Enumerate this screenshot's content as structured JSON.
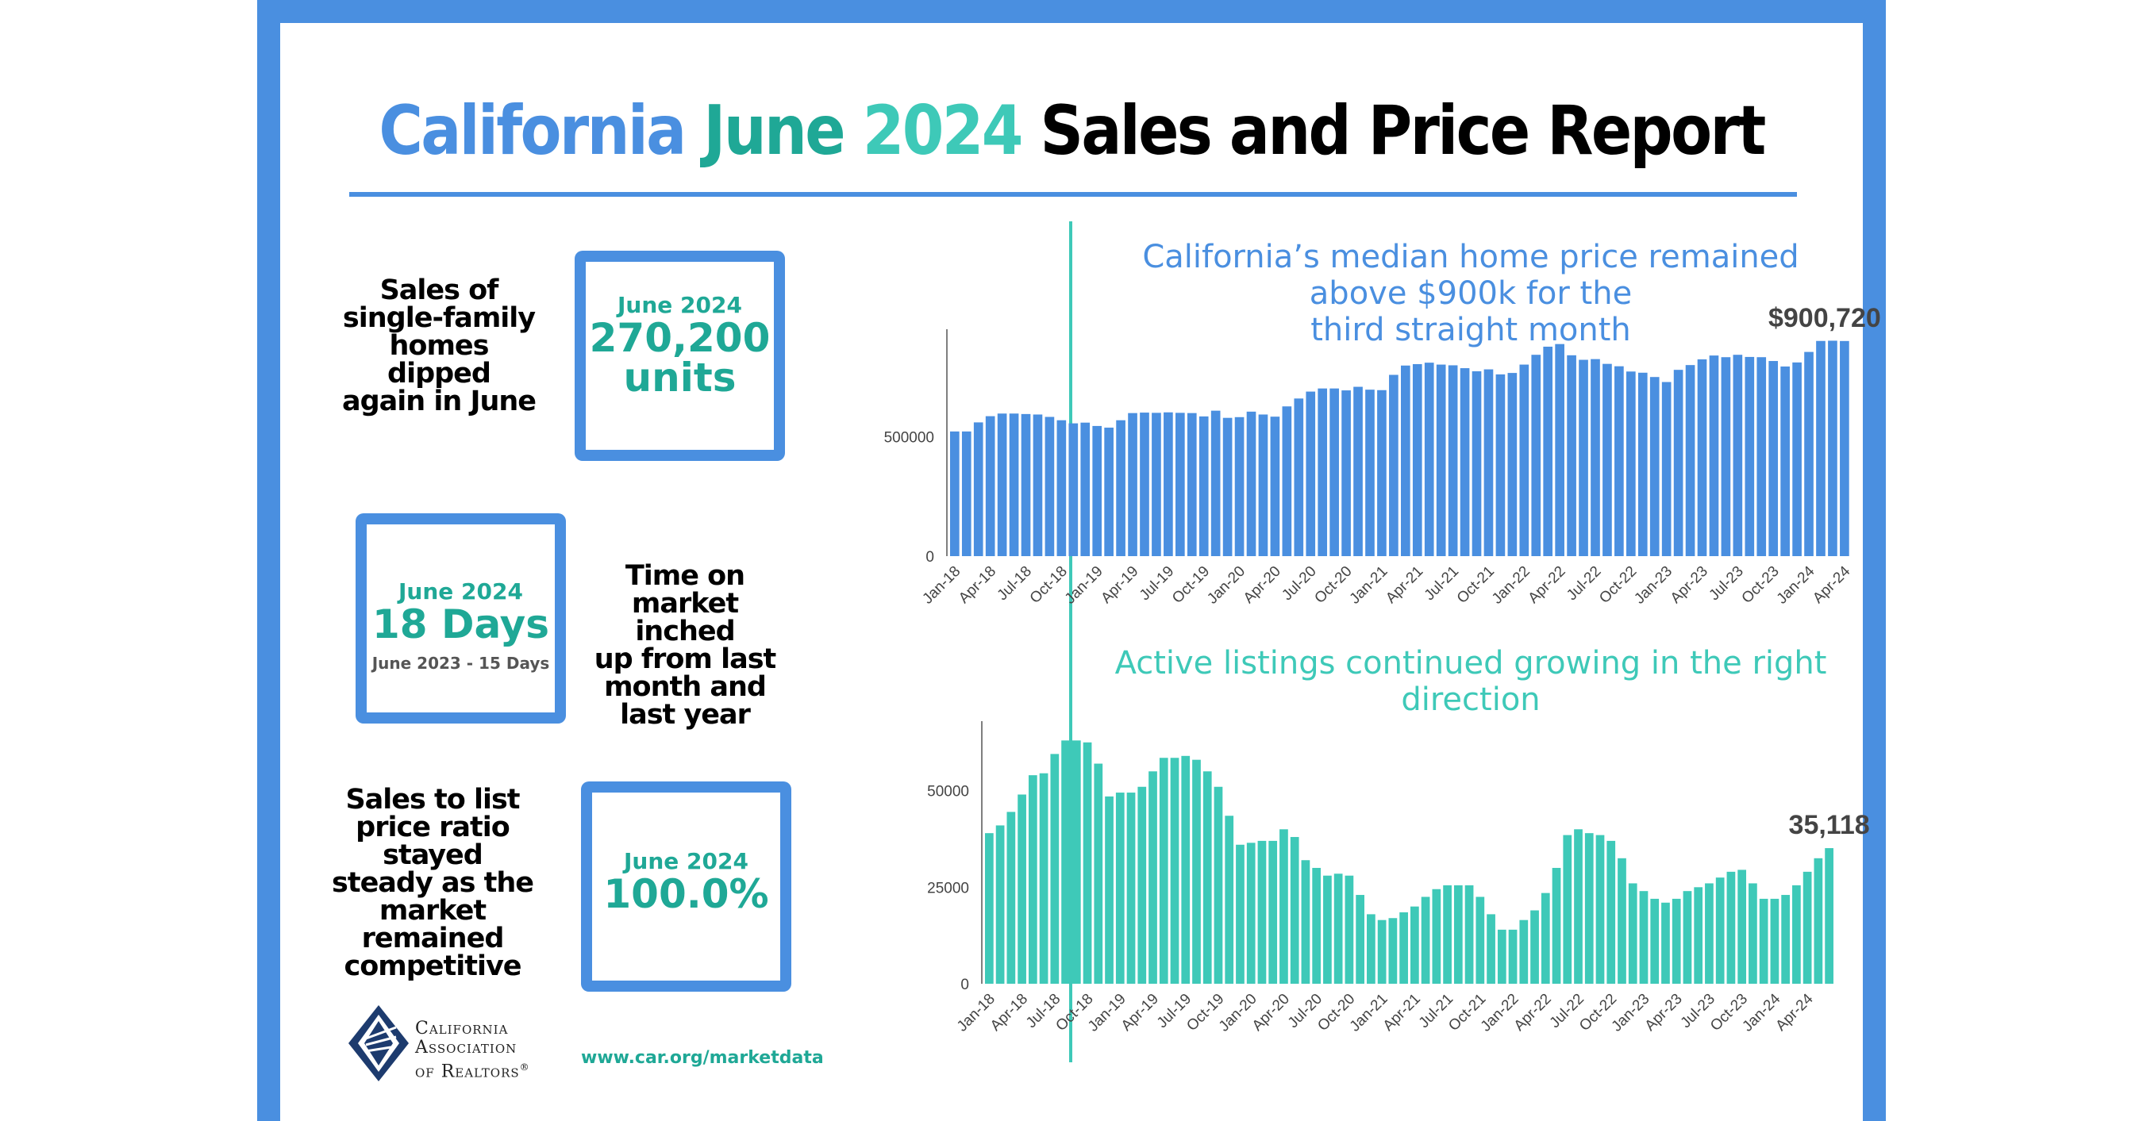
{
  "header": {
    "title_part1": "California",
    "title_part2": "June",
    "title_part3": "2024",
    "title_part4": "Sales and Price Report"
  },
  "stats": [
    {
      "description": [
        "Sales of",
        "single-family",
        "homes dipped",
        "again in June"
      ],
      "box_label": "June 2024",
      "box_value": [
        "270,200",
        "units"
      ],
      "box_sub": ""
    },
    {
      "description": [
        "Time on",
        "market inched",
        "up from last",
        "month and",
        "last year"
      ],
      "box_label": "June 2024",
      "box_value": [
        "18 Days"
      ],
      "box_sub": "June 2023 - 15 Days"
    },
    {
      "description": [
        "Sales to list",
        "price ratio",
        "stayed",
        "steady as the",
        "market",
        "remained",
        "competitive"
      ],
      "box_label": "June 2024",
      "box_value": [
        "100.0%"
      ],
      "box_sub": ""
    }
  ],
  "footer": {
    "logo_lines": [
      "California",
      "Association",
      "of Realtors"
    ],
    "logo_reg": "®",
    "url": "www.car.org/marketdata"
  },
  "colors": {
    "blue": "#4a8fe0",
    "teal": "#3ec9b8",
    "teal_dark": "#1fa896"
  },
  "chart_data": [
    {
      "type": "bar",
      "title": [
        "California’s median home price remained above $900k for the",
        "third straight month"
      ],
      "annotation": "$900,720",
      "color": "#4a8fe0",
      "ylim": [
        0,
        950000
      ],
      "yticks": [
        0,
        500000
      ],
      "xtick_labels": [
        "Jan-18",
        "Apr-18",
        "Jul-18",
        "Oct-18",
        "Jan-19",
        "Apr-19",
        "Jul-19",
        "Oct-19",
        "Jan-20",
        "Apr-20",
        "Jul-20",
        "Oct-20",
        "Jan-21",
        "Apr-21",
        "Jul-21",
        "Oct-21",
        "Jan-22",
        "Apr-22",
        "Jul-22",
        "Oct-22",
        "Jan-23",
        "Apr-23",
        "Jul-23",
        "Oct-23",
        "Jan-24",
        "Apr-24"
      ],
      "values": [
        522000,
        522000,
        560000,
        586000,
        597000,
        597000,
        595000,
        593000,
        583000,
        569000,
        556000,
        559000,
        545000,
        538000,
        569000,
        599000,
        601000,
        600000,
        602000,
        600000,
        599000,
        585000,
        609000,
        579000,
        582000,
        605000,
        593000,
        584000,
        627000,
        660000,
        689000,
        702000,
        702000,
        694000,
        709000,
        697000,
        695000,
        759000,
        798000,
        804000,
        810000,
        802000,
        799000,
        787000,
        774000,
        782000,
        761000,
        767000,
        802000,
        843000,
        877000,
        888000,
        841000,
        822000,
        825000,
        805000,
        795000,
        773000,
        768000,
        750000,
        729000,
        780000,
        800000,
        824000,
        840000,
        833000,
        843000,
        834000,
        833000,
        817000,
        794000,
        811000,
        855000,
        901000,
        902000,
        900720
      ]
    },
    {
      "type": "bar",
      "title": [
        "Active listings continued growing in the right direction"
      ],
      "annotation": "35,118",
      "color": "#3ec9b8",
      "ylim": [
        0,
        68000
      ],
      "yticks": [
        0,
        25000,
        50000
      ],
      "xtick_labels": [
        "Jan-18",
        "Apr-18",
        "Jul-18",
        "Oct-18",
        "Jan-19",
        "Apr-19",
        "Jul-19",
        "Oct-19",
        "Jan-20",
        "Apr-20",
        "Jul-20",
        "Oct-20",
        "Jan-21",
        "Apr-21",
        "Jul-21",
        "Oct-21",
        "Jan-22",
        "Apr-22",
        "Jul-22",
        "Oct-22",
        "Jan-23",
        "Apr-23",
        "Jul-23",
        "Oct-23",
        "Jan-24",
        "Apr-24"
      ],
      "values": [
        39000,
        41000,
        44500,
        49000,
        54000,
        54500,
        59500,
        63000,
        63000,
        62500,
        57000,
        48500,
        49500,
        49500,
        51000,
        55000,
        58500,
        58500,
        59000,
        58000,
        55000,
        51000,
        43500,
        36000,
        36500,
        37000,
        37000,
        40000,
        38000,
        32000,
        30000,
        28000,
        28500,
        28000,
        23000,
        18000,
        16500,
        17000,
        18500,
        20000,
        22500,
        24500,
        25500,
        25500,
        25500,
        22500,
        18000,
        14000,
        14000,
        16500,
        19000,
        23500,
        30000,
        38500,
        40000,
        39000,
        38500,
        37000,
        32500,
        26000,
        24000,
        22000,
        21000,
        22000,
        24000,
        25000,
        26000,
        27500,
        29000,
        29500,
        26000,
        22000,
        22000,
        23000,
        25500,
        29000,
        32500,
        35118
      ]
    }
  ]
}
